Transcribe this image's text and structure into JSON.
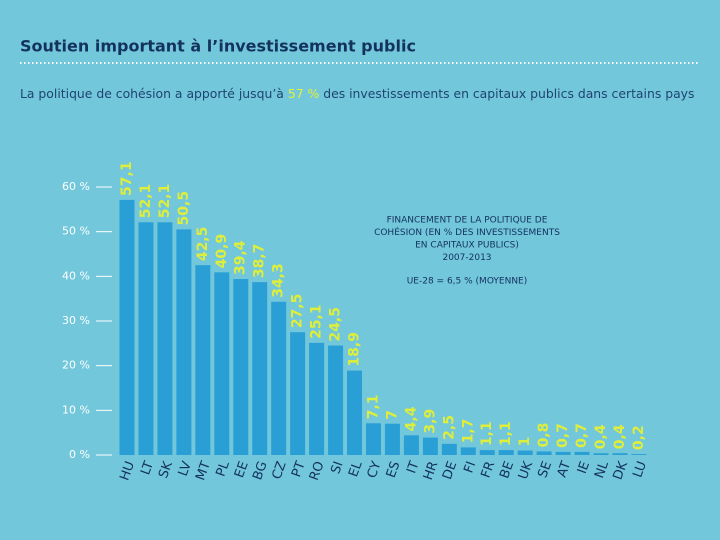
{
  "chart_data": {
    "type": "bar",
    "title": "Soutien important à l’investissement public",
    "subtitle": [
      "La politique de cohésion a apporté jusqu’à ",
      "57 %",
      " des investissements en capitaux publics dans certains pays"
    ],
    "annotation": [
      "FINANCEMENT DE LA POLITIQUE DE",
      "COHÉSION (EN % DES INVESTISSEMENTS",
      "EN CAPITAUX PUBLICS)",
      "2007-2013"
    ],
    "average_note": "UE-28 = 6,5 % (MOYENNE)",
    "categories": [
      "HU",
      "LT",
      "SK",
      "LV",
      "MT",
      "PL",
      "EE",
      "BG",
      "CZ",
      "PT",
      "RO",
      "SI",
      "EL",
      "CY",
      "ES",
      "IT",
      "HR",
      "DE",
      "FI",
      "FR",
      "BE",
      "UK",
      "SE",
      "AT",
      "IE",
      "NL",
      "DK",
      "LU"
    ],
    "values": [
      57.1,
      52.1,
      52.1,
      50.5,
      42.5,
      40.9,
      39.4,
      38.7,
      34.3,
      27.5,
      25.1,
      24.5,
      18.9,
      7.1,
      7,
      4.4,
      3.9,
      2.5,
      1.7,
      1.1,
      1.1,
      1,
      0.8,
      0.7,
      0.7,
      0.4,
      0.4,
      0.2
    ],
    "value_labels": [
      "57,1",
      "52,1",
      "52,1",
      "50,5",
      "42,5",
      "40,9",
      "39,4",
      "38,7",
      "34,3",
      "27,5",
      "25,1",
      "24,5",
      "18,9",
      "7,1",
      "7",
      "4,4",
      "3,9",
      "2,5",
      "1,7",
      "1,1",
      "1,1",
      "1",
      "0,8",
      "0,7",
      "0,7",
      "0,4",
      "0,4",
      "0,2"
    ],
    "color": "#2a9fd6",
    "ylim": [
      0,
      60
    ],
    "yticks": [
      {
        "value": 0,
        "label": "0 %"
      },
      {
        "value": 10,
        "label": "10 %"
      },
      {
        "value": 20,
        "label": "20 %"
      },
      {
        "value": 30,
        "label": "30 %"
      },
      {
        "value": 40,
        "label": "40 %"
      },
      {
        "value": 50,
        "label": "50 %"
      },
      {
        "value": 60,
        "label": "60 %"
      }
    ]
  }
}
